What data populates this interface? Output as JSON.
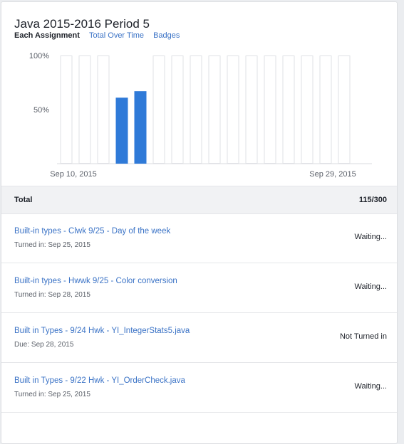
{
  "course_title": "Java 2015-2016 Period 5",
  "tabs": [
    {
      "label": "Each Assignment",
      "active": true
    },
    {
      "label": "Total Over Time",
      "active": false
    },
    {
      "label": "Badges",
      "active": false
    }
  ],
  "chart_data": {
    "type": "bar",
    "y_tick_labels": [
      "100%",
      "50%"
    ],
    "y_ticks": [
      100,
      50
    ],
    "ylim": [
      0,
      100
    ],
    "x_tick_labels": [
      "Sep 10, 2015",
      "Sep 29, 2015"
    ],
    "x_tick_indices": [
      1,
      15
    ],
    "bar_count": 17,
    "values": [
      0,
      0,
      0,
      61,
      67,
      0,
      0,
      0,
      0,
      0,
      0,
      0,
      0,
      0,
      0,
      0,
      0
    ],
    "placeholder_bars": [
      true,
      true,
      true,
      false,
      false,
      true,
      true,
      true,
      true,
      true,
      true,
      true,
      true,
      true,
      true,
      true,
      false
    ],
    "bar_color": "#2f7ad8",
    "placeholder_color": "#dfe1e5"
  },
  "total": {
    "label": "Total",
    "score": "115/300"
  },
  "assignments": [
    {
      "title": "Built-in types - Clwk 9/25 - Day of the week",
      "sub": "Turned in: Sep 25, 2015",
      "status": "Waiting..."
    },
    {
      "title": "Built-in types - Hwwk 9/25 - Color conversion",
      "sub": "Turned in: Sep 28, 2015",
      "status": "Waiting..."
    },
    {
      "title": "Built in Types - 9/24 Hwk - YI_IntegerStats5.java",
      "sub": "Due: Sep 28, 2015",
      "status": "Not Turned in"
    },
    {
      "title": "Built in Types - 9/22 Hwk - YI_OrderCheck.java",
      "sub": "Turned in: Sep 25, 2015",
      "status": "Waiting..."
    }
  ]
}
